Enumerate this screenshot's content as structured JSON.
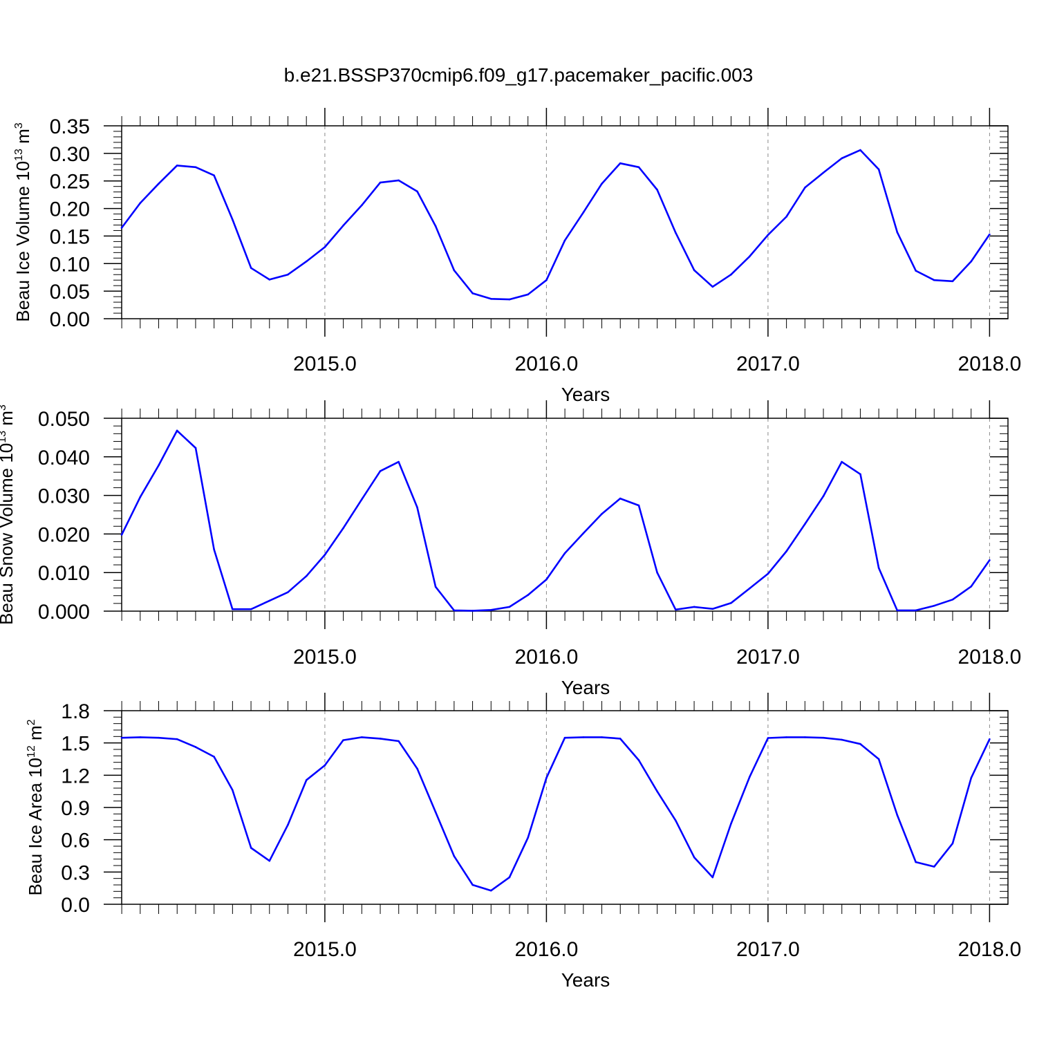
{
  "title": "b.e21.BSSP370cmip6.f09_g17.pacemaker_pacific.003",
  "chart_data": [
    {
      "type": "line",
      "ylabel": {
        "base": "Beau Ice Volume 10",
        "exp": "13",
        "unit": " m",
        "unit_exp": "3"
      },
      "xlabel": "Years",
      "xlim": [
        2014.083,
        2018.083
      ],
      "ylim": [
        0.0,
        0.35
      ],
      "yticks": [
        0.0,
        0.05,
        0.1,
        0.15,
        0.2,
        0.25,
        0.3,
        0.35
      ],
      "ytick_labels": [
        "0.00",
        "0.05",
        "0.10",
        "0.15",
        "0.20",
        "0.25",
        "0.30",
        "0.35"
      ],
      "xticks": [
        2015.0,
        2016.0,
        2017.0,
        2018.0
      ],
      "xtick_labels": [
        "2015.0",
        "2016.0",
        "2017.0",
        "2018.0"
      ],
      "grid": "vertical dashed at major x ticks",
      "color": "#0000ff",
      "x": [
        2014.083,
        2014.167,
        2014.25,
        2014.333,
        2014.417,
        2014.5,
        2014.583,
        2014.667,
        2014.75,
        2014.833,
        2014.917,
        2015.0,
        2015.083,
        2015.167,
        2015.25,
        2015.333,
        2015.417,
        2015.5,
        2015.583,
        2015.667,
        2015.75,
        2015.833,
        2015.917,
        2016.0,
        2016.083,
        2016.167,
        2016.25,
        2016.333,
        2016.417,
        2016.5,
        2016.583,
        2016.667,
        2016.75,
        2016.833,
        2016.917,
        2017.0,
        2017.083,
        2017.167,
        2017.25,
        2017.333,
        2017.417,
        2017.5,
        2017.583,
        2017.667,
        2017.75,
        2017.833,
        2017.917,
        2018.0
      ],
      "values": [
        0.165,
        0.21,
        0.245,
        0.278,
        0.275,
        0.26,
        0.18,
        0.092,
        0.071,
        0.08,
        0.104,
        0.13,
        0.169,
        0.206,
        0.247,
        0.251,
        0.231,
        0.168,
        0.088,
        0.046,
        0.036,
        0.035,
        0.044,
        0.07,
        0.142,
        0.193,
        0.245,
        0.282,
        0.275,
        0.234,
        0.156,
        0.088,
        0.058,
        0.08,
        0.113,
        0.152,
        0.185,
        0.238,
        0.265,
        0.291,
        0.306,
        0.271,
        0.157,
        0.087,
        0.07,
        0.068,
        0.104,
        0.153
      ]
    },
    {
      "type": "line",
      "ylabel": {
        "base": "Beau Snow Volume 10",
        "exp": "13",
        "unit": " m",
        "unit_exp": "3"
      },
      "xlabel": "Years",
      "xlim": [
        2014.083,
        2018.083
      ],
      "ylim": [
        0.0,
        0.05
      ],
      "yticks": [
        0.0,
        0.01,
        0.02,
        0.03,
        0.04,
        0.05
      ],
      "ytick_labels": [
        "0.000",
        "0.010",
        "0.020",
        "0.030",
        "0.040",
        "0.050"
      ],
      "xticks": [
        2015.0,
        2016.0,
        2017.0,
        2018.0
      ],
      "xtick_labels": [
        "2015.0",
        "2016.0",
        "2017.0",
        "2018.0"
      ],
      "grid": "vertical dashed at major x ticks",
      "color": "#0000ff",
      "x": [
        2014.083,
        2014.167,
        2014.25,
        2014.333,
        2014.417,
        2014.5,
        2014.583,
        2014.667,
        2014.75,
        2014.833,
        2014.917,
        2015.0,
        2015.083,
        2015.167,
        2015.25,
        2015.333,
        2015.417,
        2015.5,
        2015.583,
        2015.667,
        2015.75,
        2015.833,
        2015.917,
        2016.0,
        2016.083,
        2016.167,
        2016.25,
        2016.333,
        2016.417,
        2016.5,
        2016.583,
        2016.667,
        2016.75,
        2016.833,
        2016.917,
        2017.0,
        2017.083,
        2017.167,
        2017.25,
        2017.333,
        2017.417,
        2017.5,
        2017.583,
        2017.667,
        2017.75,
        2017.833,
        2017.917,
        2018.0
      ],
      "values": [
        0.0198,
        0.0296,
        0.0378,
        0.0468,
        0.0423,
        0.016,
        0.0005,
        0.0005,
        0.0027,
        0.0049,
        0.0091,
        0.0146,
        0.0215,
        0.029,
        0.0363,
        0.0387,
        0.0269,
        0.0063,
        0.0002,
        0.0001,
        0.0003,
        0.0011,
        0.0042,
        0.0082,
        0.015,
        0.0202,
        0.0252,
        0.0292,
        0.0274,
        0.01,
        0.0004,
        0.0011,
        0.0006,
        0.0021,
        0.0059,
        0.0097,
        0.0155,
        0.0226,
        0.0298,
        0.0387,
        0.0355,
        0.0112,
        0.0002,
        0.0002,
        0.0014,
        0.003,
        0.0064,
        0.0132
      ]
    },
    {
      "type": "line",
      "ylabel": {
        "base": "Beau Ice Area 10",
        "exp": "12",
        "unit": " m",
        "unit_exp": "2"
      },
      "xlabel": "Years",
      "xlim": [
        2014.083,
        2018.083
      ],
      "ylim": [
        0.0,
        1.8
      ],
      "yticks": [
        0.0,
        0.3,
        0.6,
        0.9,
        1.2,
        1.5,
        1.8
      ],
      "ytick_labels": [
        "0.0",
        "0.3",
        "0.6",
        "0.9",
        "1.2",
        "1.5",
        "1.8"
      ],
      "xticks": [
        2015.0,
        2016.0,
        2017.0,
        2018.0
      ],
      "xtick_labels": [
        "2015.0",
        "2016.0",
        "2017.0",
        "2018.0"
      ],
      "grid": "vertical dashed at major x ticks",
      "color": "#0000ff",
      "x": [
        2014.083,
        2014.167,
        2014.25,
        2014.333,
        2014.417,
        2014.5,
        2014.583,
        2014.667,
        2014.75,
        2014.833,
        2014.917,
        2015.0,
        2015.083,
        2015.167,
        2015.25,
        2015.333,
        2015.417,
        2015.5,
        2015.583,
        2015.667,
        2015.75,
        2015.833,
        2015.917,
        2016.0,
        2016.083,
        2016.167,
        2016.25,
        2016.333,
        2016.417,
        2016.5,
        2016.583,
        2016.667,
        2016.75,
        2016.833,
        2016.917,
        2017.0,
        2017.083,
        2017.167,
        2017.25,
        2017.333,
        2017.417,
        2017.5,
        2017.583,
        2017.667,
        2017.75,
        2017.833,
        2017.917,
        2018.0
      ],
      "values": [
        1.548,
        1.553,
        1.548,
        1.535,
        1.462,
        1.372,
        1.062,
        0.524,
        0.404,
        0.738,
        1.155,
        1.292,
        1.526,
        1.553,
        1.54,
        1.517,
        1.261,
        0.857,
        0.448,
        0.18,
        0.127,
        0.25,
        0.621,
        1.175,
        1.548,
        1.553,
        1.553,
        1.54,
        1.34,
        1.05,
        0.779,
        0.436,
        0.251,
        0.749,
        1.184,
        1.546,
        1.553,
        1.553,
        1.548,
        1.53,
        1.49,
        1.35,
        0.83,
        0.392,
        0.35,
        0.565,
        1.175,
        1.535
      ]
    }
  ]
}
